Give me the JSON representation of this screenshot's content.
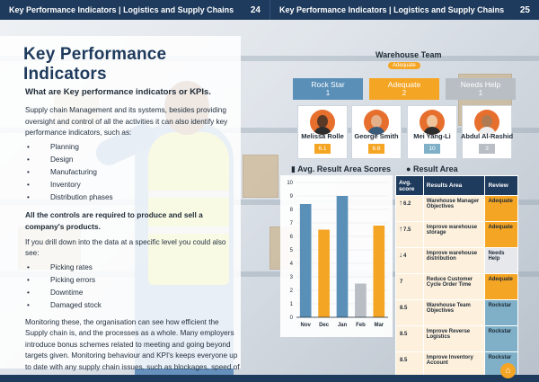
{
  "header": {
    "left_title": "Key Performance Indicators | Logistics and Supply Chains",
    "left_page": "24",
    "right_title": "Key Performance Indicators | Logistics and Supply Chains",
    "right_page": "25"
  },
  "left": {
    "title": "Key Performance Indicators",
    "subtitle": "What are Key performance indicators or KPIs.",
    "intro": "Supply chain Management and its systems, besides providing oversight and control of all the activities it can also identify key performance indicators, such as:",
    "kpis": [
      "Planning",
      "Design",
      "Manufacturing",
      "Inventory",
      "Distribution phases"
    ],
    "bold_para": "All the controls are required to produce and sell a company's products.",
    "drill_intro": "If you drill down into the data at a specific level you could also see:",
    "drill_items": [
      "Picking rates",
      "Picking errors",
      "Downtime",
      "Damaged stock"
    ],
    "closing": "Monitoring these, the organisation can see how efficient the Supply chain is, and the processes as a whole. Many employers introduce bonus schemes related to meeting and going beyond targets given. Monitoring behaviour and KPI's keeps everyone up to date with any supply chain issues, such as blockages, speed of each stage and lead"
  },
  "team": {
    "title": "Warehouse Team",
    "badge": "Adequate",
    "ratings": [
      {
        "label": "Rock Star",
        "count": "1",
        "color": "#5a8fb8"
      },
      {
        "label": "Adequate",
        "count": "2",
        "color": "#f5a524"
      },
      {
        "label": "Needs Help",
        "count": "1",
        "color": "#b9bec4"
      }
    ],
    "people": [
      {
        "name": "Melissa Rolle",
        "score": "6.1",
        "score_color": "#f5a524",
        "avatar_bg": "#e76f2e"
      },
      {
        "name": "George Smith",
        "score": "6.6",
        "score_color": "#f5a524",
        "avatar_bg": "#e76f2e"
      },
      {
        "name": "Mei Yang-Li",
        "score": "10",
        "score_color": "#7fb0c8",
        "avatar_bg": "#e76f2e"
      },
      {
        "name": "Abdul Al-Rashid",
        "score": "3",
        "score_color": "#b9bec4",
        "avatar_bg": "#e76f2e"
      }
    ]
  },
  "chart_data": {
    "type": "bar",
    "title": "Avg. Result Area Scores",
    "categories": [
      "Nov",
      "Dec",
      "Jan",
      "Feb",
      "Mar"
    ],
    "values": [
      8.4,
      6.5,
      9.0,
      2.5,
      6.8
    ],
    "colors": [
      "#5a8fb8",
      "#f5a524",
      "#5a8fb8",
      "#b9bec4",
      "#f5a524"
    ],
    "ylim": [
      0,
      10
    ],
    "yticks": [
      "0",
      "1",
      "2",
      "3",
      "4",
      "5",
      "6",
      "7",
      "8",
      "9",
      "10"
    ],
    "xlabel": "",
    "ylabel": "",
    "grid": true
  },
  "results": {
    "title": "Result Area",
    "headers": [
      "Avg. score",
      "Results Area",
      "Review"
    ],
    "rows": [
      {
        "arrow": "↑",
        "score": "6.2",
        "area": "Warehouse Manager Objectives",
        "review": "Adequate",
        "cls": "ad"
      },
      {
        "arrow": "↑",
        "score": "7.5",
        "area": "Improve warehouse storage",
        "review": "Adequate",
        "cls": "ad"
      },
      {
        "arrow": "↓",
        "score": "4",
        "area": "Improve warehouse distribution",
        "review": "Needs Help",
        "cls": "nh"
      },
      {
        "arrow": "",
        "score": "7",
        "area": "Reduce Customer Cycle Order Time",
        "review": "Adequate",
        "cls": "ad"
      },
      {
        "arrow": "",
        "score": "8.5",
        "area": "Warehouse Team Objectives",
        "review": "Rockstar",
        "cls": "rs"
      },
      {
        "arrow": "",
        "score": "8.5",
        "area": "Improve Reverse Logistics",
        "review": "Rockstar",
        "cls": "rs"
      },
      {
        "arrow": "",
        "score": "8.5",
        "area": "Improve Inventory Account",
        "review": "Rockstar",
        "cls": "rs"
      }
    ]
  }
}
